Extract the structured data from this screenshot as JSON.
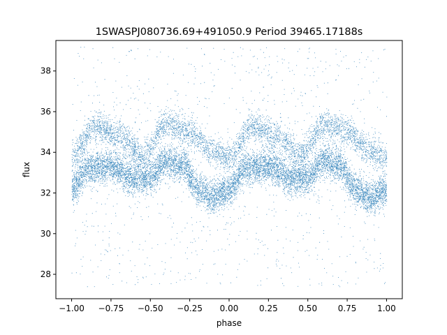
{
  "chart_data": {
    "type": "scatter",
    "title": "1SWASPJ080736.69+491050.9 Period 39465.17188s",
    "xlabel": "phase",
    "ylabel": "flux",
    "xlim": [
      -1.1,
      1.1
    ],
    "ylim": [
      26.8,
      39.5
    ],
    "x_ticks": [
      -1.0,
      -0.75,
      -0.5,
      -0.25,
      0.0,
      0.25,
      0.5,
      0.75,
      1.0
    ],
    "x_tick_labels": [
      "−1.00",
      "−0.75",
      "−0.50",
      "−0.25",
      "0.00",
      "0.25",
      "0.50",
      "0.75",
      "1.00"
    ],
    "y_ticks": [
      28,
      30,
      32,
      34,
      36,
      38
    ],
    "y_tick_labels": [
      "28",
      "30",
      "32",
      "34",
      "36",
      "38"
    ],
    "grid": false,
    "point_color": "#1f77b4",
    "phase_range": [
      -1.0,
      1.0
    ],
    "flux_range": [
      27.4,
      39.2
    ],
    "series": [
      {
        "description": "lower branch",
        "profile": [
          {
            "x": -1.0,
            "y": 32.2
          },
          {
            "x": -0.9,
            "y": 33.2
          },
          {
            "x": -0.75,
            "y": 33.3
          },
          {
            "x": -0.6,
            "y": 32.7
          },
          {
            "x": -0.5,
            "y": 32.8
          },
          {
            "x": -0.4,
            "y": 33.6
          },
          {
            "x": -0.3,
            "y": 33.4
          },
          {
            "x": -0.2,
            "y": 32.2
          },
          {
            "x": -0.1,
            "y": 31.8
          },
          {
            "x": 0.0,
            "y": 32.2
          },
          {
            "x": 0.1,
            "y": 33.2
          },
          {
            "x": 0.25,
            "y": 33.3
          },
          {
            "x": 0.4,
            "y": 32.7
          },
          {
            "x": 0.5,
            "y": 32.8
          },
          {
            "x": 0.6,
            "y": 33.6
          },
          {
            "x": 0.7,
            "y": 33.4
          },
          {
            "x": 0.8,
            "y": 32.2
          },
          {
            "x": 0.9,
            "y": 31.8
          },
          {
            "x": 1.0,
            "y": 32.2
          }
        ]
      },
      {
        "description": "upper branch",
        "profile": [
          {
            "x": -1.0,
            "y": 33.8
          },
          {
            "x": -0.85,
            "y": 35.3
          },
          {
            "x": -0.7,
            "y": 34.8
          },
          {
            "x": -0.55,
            "y": 33.9
          },
          {
            "x": -0.4,
            "y": 35.4
          },
          {
            "x": -0.25,
            "y": 35.0
          },
          {
            "x": -0.1,
            "y": 34.0
          },
          {
            "x": 0.0,
            "y": 33.8
          },
          {
            "x": 0.15,
            "y": 35.3
          },
          {
            "x": 0.3,
            "y": 34.8
          },
          {
            "x": 0.45,
            "y": 33.9
          },
          {
            "x": 0.6,
            "y": 35.4
          },
          {
            "x": 0.75,
            "y": 35.0
          },
          {
            "x": 0.9,
            "y": 34.0
          },
          {
            "x": 1.0,
            "y": 33.8
          }
        ]
      }
    ]
  }
}
